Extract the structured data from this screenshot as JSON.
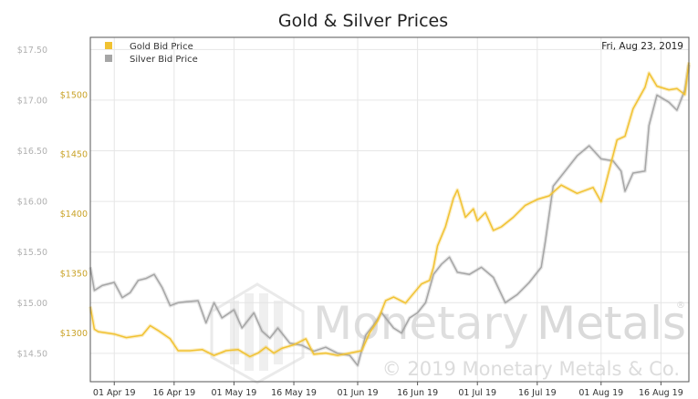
{
  "chart_data": {
    "type": "line",
    "title": "Gold & Silver Prices",
    "date_label": "Fri, Aug 23, 2019",
    "watermark": {
      "brand_left": "Monetary",
      "brand_right": "Metals",
      "registered": "®",
      "copyright": "© 2019 Monetary Metals & Co."
    },
    "x_ticks": [
      "01 Apr 19",
      "16 Apr 19",
      "01 May 19",
      "16 May 19",
      "01 Jun 19",
      "16 Jun 19",
      "01 Jul 19",
      "16 Jul 19",
      "01 Aug 19",
      "16 Aug 19"
    ],
    "x_range": [
      "2019-03-26",
      "2019-08-23"
    ],
    "left_axis": {
      "series": "Silver Bid Price",
      "ylim": [
        14.22,
        17.62
      ],
      "ticks": [
        14.5,
        15.0,
        15.5,
        16.0,
        16.5,
        17.0,
        17.5
      ],
      "tick_labels": [
        "$14.50",
        "$15.00",
        "$15.50",
        "$16.00",
        "$16.50",
        "$17.00",
        "$17.50"
      ]
    },
    "right_axis": {
      "series": "Gold Bid Price",
      "ylim": [
        1259,
        1548
      ],
      "ticks": [
        1300,
        1350,
        1400,
        1450,
        1500
      ],
      "tick_labels": [
        "$1300",
        "$1350",
        "$1400",
        "$1450",
        "$1500"
      ]
    },
    "legend": {
      "position": "top-left"
    },
    "grid": true,
    "series": [
      {
        "name": "Gold Bid Price",
        "axis": "right",
        "color": "#f1c232",
        "x": [
          "2019-03-26",
          "2019-03-27",
          "2019-03-28",
          "2019-04-01",
          "2019-04-04",
          "2019-04-08",
          "2019-04-10",
          "2019-04-12",
          "2019-04-15",
          "2019-04-17",
          "2019-04-20",
          "2019-04-23",
          "2019-04-26",
          "2019-04-29",
          "2019-05-02",
          "2019-05-05",
          "2019-05-07",
          "2019-05-09",
          "2019-05-11",
          "2019-05-13",
          "2019-05-16",
          "2019-05-19",
          "2019-05-21",
          "2019-05-24",
          "2019-05-27",
          "2019-05-30",
          "2019-06-02",
          "2019-06-04",
          "2019-06-06",
          "2019-06-08",
          "2019-06-10",
          "2019-06-13",
          "2019-06-15",
          "2019-06-17",
          "2019-06-19",
          "2019-06-20",
          "2019-06-21",
          "2019-06-23",
          "2019-06-25",
          "2019-06-26",
          "2019-06-28",
          "2019-06-30",
          "2019-07-01",
          "2019-07-03",
          "2019-07-05",
          "2019-07-07",
          "2019-07-10",
          "2019-07-13",
          "2019-07-16",
          "2019-07-19",
          "2019-07-22",
          "2019-07-26",
          "2019-07-30",
          "2019-08-01",
          "2019-08-03",
          "2019-08-05",
          "2019-08-07",
          "2019-08-09",
          "2019-08-12",
          "2019-08-13",
          "2019-08-15",
          "2019-08-18",
          "2019-08-20",
          "2019-08-22",
          "2019-08-23"
        ],
        "values": [
          1322,
          1303,
          1301,
          1299,
          1296,
          1298,
          1306,
          1302,
          1295,
          1285,
          1285,
          1286,
          1281,
          1285,
          1286,
          1280,
          1283,
          1288,
          1283,
          1287,
          1290,
          1295,
          1282,
          1283,
          1281,
          1283,
          1285,
          1300,
          1310,
          1327,
          1330,
          1325,
          1333,
          1341,
          1344,
          1355,
          1373,
          1389,
          1413,
          1420,
          1397,
          1404,
          1394,
          1401,
          1386,
          1389,
          1397,
          1407,
          1412,
          1415,
          1424,
          1417,
          1422,
          1410,
          1436,
          1462,
          1465,
          1488,
          1506,
          1518,
          1507,
          1504,
          1505,
          1500,
          1527
        ]
      },
      {
        "name": "Silver Bid Price",
        "axis": "left",
        "color": "#a6a6a6",
        "x": [
          "2019-03-26",
          "2019-03-27",
          "2019-03-29",
          "2019-04-01",
          "2019-04-03",
          "2019-04-05",
          "2019-04-07",
          "2019-04-09",
          "2019-04-11",
          "2019-04-13",
          "2019-04-15",
          "2019-04-17",
          "2019-04-19",
          "2019-04-22",
          "2019-04-24",
          "2019-04-26",
          "2019-04-28",
          "2019-05-01",
          "2019-05-03",
          "2019-05-06",
          "2019-05-08",
          "2019-05-10",
          "2019-05-12",
          "2019-05-15",
          "2019-05-18",
          "2019-05-21",
          "2019-05-24",
          "2019-05-27",
          "2019-05-30",
          "2019-06-01",
          "2019-06-03",
          "2019-06-05",
          "2019-06-07",
          "2019-06-10",
          "2019-06-12",
          "2019-06-14",
          "2019-06-16",
          "2019-06-18",
          "2019-06-20",
          "2019-06-22",
          "2019-06-24",
          "2019-06-26",
          "2019-06-29",
          "2019-07-02",
          "2019-07-05",
          "2019-07-08",
          "2019-07-11",
          "2019-07-14",
          "2019-07-17",
          "2019-07-18",
          "2019-07-20",
          "2019-07-23",
          "2019-07-26",
          "2019-07-29",
          "2019-08-01",
          "2019-08-04",
          "2019-08-06",
          "2019-08-07",
          "2019-08-09",
          "2019-08-12",
          "2019-08-13",
          "2019-08-15",
          "2019-08-18",
          "2019-08-20",
          "2019-08-22",
          "2019-08-23"
        ],
        "values": [
          15.35,
          15.12,
          15.17,
          15.2,
          15.05,
          15.1,
          15.22,
          15.24,
          15.28,
          15.15,
          14.97,
          15.0,
          15.01,
          15.02,
          14.8,
          15.0,
          14.85,
          14.93,
          14.75,
          14.9,
          14.72,
          14.65,
          14.75,
          14.6,
          14.58,
          14.52,
          14.56,
          14.5,
          14.48,
          14.38,
          14.68,
          14.78,
          14.9,
          14.75,
          14.7,
          14.85,
          14.9,
          15.0,
          15.28,
          15.38,
          15.45,
          15.3,
          15.28,
          15.35,
          15.25,
          15.0,
          15.08,
          15.2,
          15.35,
          15.6,
          16.15,
          16.3,
          16.45,
          16.55,
          16.42,
          16.4,
          16.3,
          16.1,
          16.28,
          16.3,
          16.75,
          17.05,
          16.98,
          16.9,
          17.1,
          17.35
        ]
      }
    ]
  }
}
